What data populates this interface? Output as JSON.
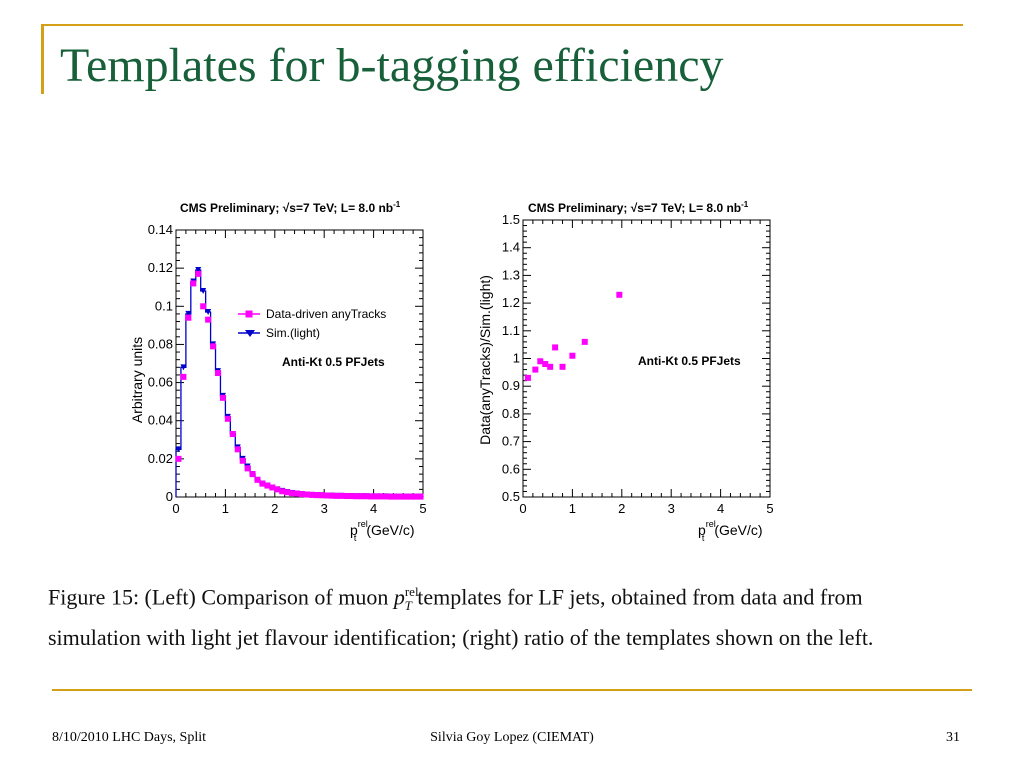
{
  "slide": {
    "title": "Templates for b-tagging efficiency",
    "footer_left": "8/10/2010 LHC Days, Split",
    "footer_center": "Silvia Goy Lopez (CIEMAT)",
    "footer_right": "31",
    "caption_pre": "Figure 15: (Left) Comparison of muon ",
    "caption_post": " templates for LF jets, obtained from data and from simulation with light jet flavour identification; (right) ratio of the templates shown on the left.",
    "caption_p": "p",
    "caption_sub": "T",
    "caption_sup": "rel"
  },
  "colors": {
    "title": "#17603a",
    "rule": "#d4a017",
    "data_series": "#ff00ff",
    "sim_series": "#0000cc"
  },
  "chart_data": [
    {
      "type": "line",
      "header": "CMS Preliminary; √s=7 TeV; L= 8.0 nb",
      "header_sup": "-1",
      "xlabel_main": "p",
      "xlabel_sup": "rel",
      "xlabel_sub": "t",
      "xlabel_unit": "(GeV/c)",
      "ylabel": "Arbitrary units",
      "annotation": "Anti-Kt 0.5 PFJets",
      "xlim": [
        0,
        5
      ],
      "ylim": [
        0,
        0.14
      ],
      "x_ticks": [
        "0",
        "1",
        "2",
        "3",
        "4",
        "5"
      ],
      "y_ticks": [
        "0",
        "0.02",
        "0.04",
        "0.06",
        "0.08",
        "0.1",
        "0.12",
        "0.14"
      ],
      "y_tick_values": [
        0,
        0.02,
        0.04,
        0.06,
        0.08,
        0.1,
        0.12,
        0.14
      ],
      "x": [
        0.05,
        0.15,
        0.25,
        0.35,
        0.45,
        0.55,
        0.65,
        0.75,
        0.85,
        0.95,
        1.05,
        1.15,
        1.25,
        1.35,
        1.45,
        1.55,
        1.65,
        1.75,
        1.85,
        1.95,
        2.05,
        2.15,
        2.25,
        2.35,
        2.45,
        2.55,
        2.65,
        2.75,
        2.85,
        2.95,
        3.05,
        3.15,
        3.25,
        3.35,
        3.45,
        3.55,
        3.65,
        3.75,
        3.85,
        3.95,
        4.05,
        4.15,
        4.25,
        4.35,
        4.45,
        4.55,
        4.65,
        4.75,
        4.85,
        4.95
      ],
      "series": [
        {
          "name": "Data-driven anyTracks",
          "style": "markers",
          "values": [
            0.02,
            0.063,
            0.094,
            0.112,
            0.117,
            0.1,
            0.093,
            0.079,
            0.065,
            0.052,
            0.041,
            0.033,
            0.025,
            0.019,
            0.015,
            0.012,
            0.009,
            0.007,
            0.006,
            0.005,
            0.004,
            0.003,
            0.0025,
            0.002,
            0.0018,
            0.0015,
            0.0013,
            0.0011,
            0.001,
            0.0009,
            0.0008,
            0.0007,
            0.0006,
            0.0006,
            0.0005,
            0.0005,
            0.0004,
            0.0004,
            0.0004,
            0.0003,
            0.0003,
            0.0003,
            0.0003,
            0.0002,
            0.0002,
            0.0002,
            0.0002,
            0.0002,
            0.0002,
            0.0002
          ]
        },
        {
          "name": "Sim.(light)",
          "style": "histogram",
          "values": [
            0.025,
            0.068,
            0.096,
            0.113,
            0.119,
            0.108,
            0.097,
            0.08,
            0.066,
            0.053,
            0.042,
            0.033,
            0.026,
            0.02,
            0.016,
            0.012,
            0.009,
            0.007,
            0.006,
            0.005,
            0.004,
            0.0032,
            0.0026,
            0.0021,
            0.0018,
            0.0015,
            0.0013,
            0.0011,
            0.001,
            0.0009,
            0.0008,
            0.0007,
            0.0006,
            0.0006,
            0.0005,
            0.0005,
            0.0004,
            0.0004,
            0.0004,
            0.0003,
            0.0003,
            0.0003,
            0.0003,
            0.0002,
            0.0002,
            0.0002,
            0.0002,
            0.0002,
            0.0002,
            0.0002
          ]
        }
      ]
    },
    {
      "type": "scatter",
      "header": "CMS Preliminary; √s=7 TeV; L= 8.0 nb",
      "header_sup": "-1",
      "xlabel_main": "p",
      "xlabel_sup": "rel",
      "xlabel_sub": "t",
      "xlabel_unit": "(GeV/c)",
      "ylabel": "Data(anyTracks)/Sim.(light)",
      "annotation": "Anti-Kt 0.5 PFJets",
      "xlim": [
        0,
        5
      ],
      "ylim": [
        0.5,
        1.5
      ],
      "x_ticks": [
        "0",
        "1",
        "2",
        "3",
        "4",
        "5"
      ],
      "y_ticks": [
        "0.5",
        "0.6",
        "0.7",
        "0.8",
        "0.9",
        "1",
        "1.1",
        "1.2",
        "1.3",
        "1.4",
        "1.5"
      ],
      "y_tick_values": [
        0.5,
        0.6,
        0.7,
        0.8,
        0.9,
        1.0,
        1.1,
        1.2,
        1.3,
        1.4,
        1.5
      ],
      "x": [
        0.1,
        0.25,
        0.35,
        0.45,
        0.55,
        0.65,
        0.8,
        1.0,
        1.25,
        1.95
      ],
      "series": [
        {
          "name": "",
          "values": [
            0.93,
            0.96,
            0.99,
            0.98,
            0.97,
            1.04,
            0.97,
            1.01,
            1.06,
            1.23
          ]
        }
      ]
    }
  ]
}
